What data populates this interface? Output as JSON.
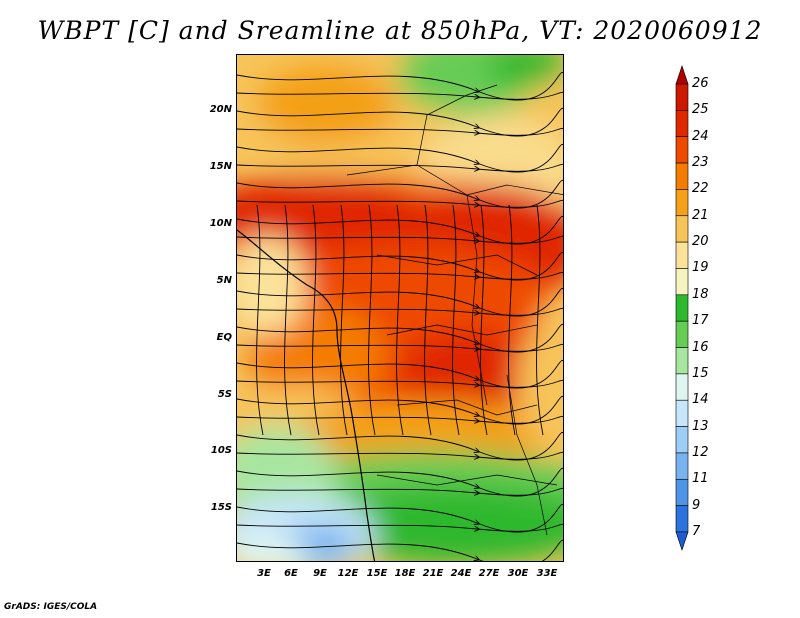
{
  "title": "WBPT [C] and Sreamline at 850hPa, VT: 2020060912",
  "credit": "GrADS: IGES/COLA",
  "axes": {
    "lat_labels": [
      "20N",
      "15N",
      "10N",
      "5N",
      "EQ",
      "5S",
      "10S",
      "15S"
    ],
    "lon_labels": [
      "3E",
      "6E",
      "9E",
      "12E",
      "15E",
      "18E",
      "21E",
      "24E",
      "27E",
      "30E",
      "33E"
    ]
  },
  "colorbar": {
    "labels": [
      "26",
      "25",
      "24",
      "23",
      "22",
      "21",
      "20",
      "19",
      "18",
      "17",
      "16",
      "15",
      "14",
      "13",
      "12",
      "11",
      "9",
      "7"
    ],
    "colors": [
      "#b00000",
      "#cc1800",
      "#e02800",
      "#ee4a00",
      "#f47c00",
      "#f4a018",
      "#f7c45a",
      "#fbe29a",
      "#f7f3c0",
      "#2eb82e",
      "#66cc55",
      "#a8e6a0",
      "#dff5ef",
      "#c8e6fb",
      "#9ecdf6",
      "#78b3ef",
      "#4f94e6",
      "#2d73dd",
      "#1f5bd3"
    ]
  }
}
